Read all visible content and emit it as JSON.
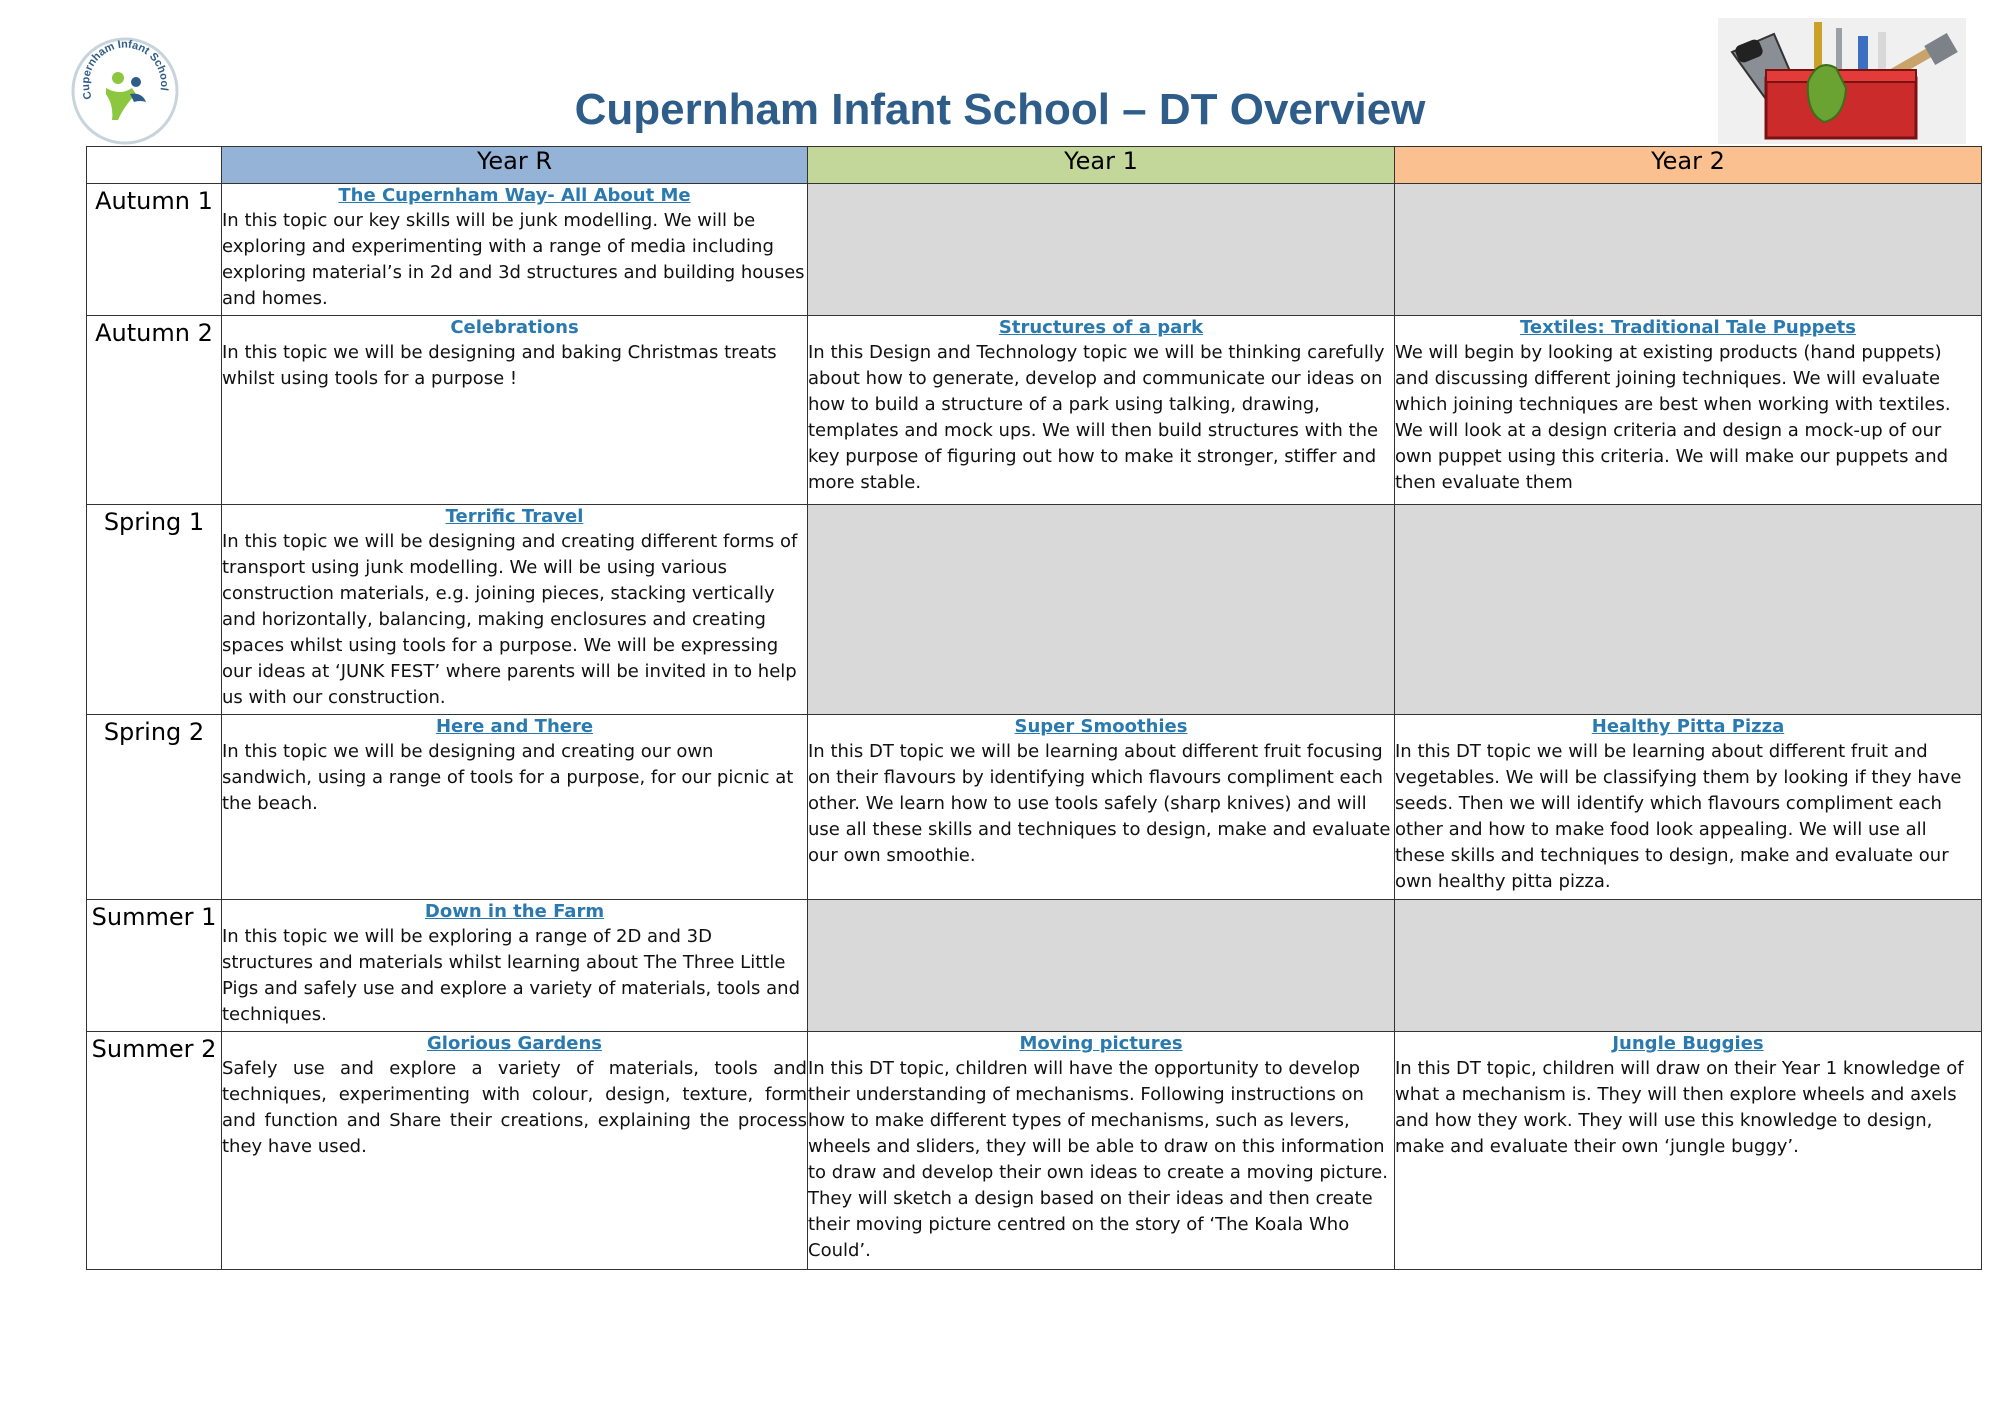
{
  "header": {
    "title": "Cupernham Infant School – DT Overview",
    "logo_text": "Cupernham Infant School"
  },
  "columns": [
    "Year R",
    "Year 1",
    "Year 2"
  ],
  "colors": {
    "year_r": "#95b3d7",
    "year_1": "#c4d79b",
    "year_2": "#fac090",
    "empty": "#d9d9d9",
    "topic": "#2a7ab0",
    "title": "#2e5d8a"
  },
  "rows": [
    {
      "term": "Autumn 1",
      "year_r": {
        "topic": "The Cupernham Way- All About Me",
        "desc": "In this topic our key skills will be junk modelling. We will be exploring and experimenting with a range of media including exploring material’s in 2d and 3d structures and building houses and homes."
      }
    },
    {
      "term": "Autumn 2",
      "year_r": {
        "topic": "Celebrations",
        "desc": "In this topic we will be designing and baking Christmas treats whilst using tools for a purpose  !"
      },
      "year_1": {
        "topic": "Structures of a park",
        "desc": "In this Design and Technology topic we will be thinking carefully about how to generate, develop and communicate our ideas on how to build a structure of a park using talking, drawing, templates and mock ups. We will then build structures with the key purpose of figuring out how to make it stronger, stiffer and more stable."
      },
      "year_2": {
        "topic": "Textiles: Traditional Tale Puppets",
        "desc": "We will begin by looking at existing products (hand puppets) and discussing different joining techniques. We will evaluate which joining techniques are best when working with textiles. We will look at a design criteria and design a mock-up of our own puppet using this criteria. We will make our puppets and then evaluate them"
      }
    },
    {
      "term": "Spring 1",
      "year_r": {
        "topic": "Terrific Travel",
        "desc": "In this topic we will be designing and creating different forms of transport using junk modelling.  We will be using various construction materials, e.g. joining pieces, stacking vertically and horizontally, balancing, making enclosures and creating spaces whilst using tools for a purpose.  We will be expressing our ideas at ‘JUNK FEST’ where parents will be invited in to help us with our construction."
      }
    },
    {
      "term": "Spring 2",
      "year_r": {
        "topic": "Here and There",
        "desc": "In this topic we will be designing and creating our own sandwich, using a range of tools for a purpose, for our picnic at the beach."
      },
      "year_1": {
        "topic": "Super Smoothies",
        "desc": "In this DT topic we will be learning about different fruit focusing on their flavours by identifying which flavours compliment each other. We learn how to use tools safely (sharp knives) and will use all these skills and techniques to design, make and evaluate our own smoothie."
      },
      "year_2": {
        "topic": "Healthy Pitta Pizza",
        "desc": "In this DT topic we will be learning about different fruit and vegetables. We will be classifying them by looking if they have seeds. Then we will identify which flavours compliment each other and how to make food look appealing. We will use all these skills and techniques to design, make and evaluate our own healthy pitta pizza."
      }
    },
    {
      "term": "Summer 1",
      "year_r": {
        "topic": "Down in the Farm",
        "desc": "In this topic we will be exploring a range of 2D and 3D structures and materials whilst learning about The Three Little Pigs and safely use and explore a variety of materials, tools and techniques."
      }
    },
    {
      "term": "Summer 2",
      "year_r": {
        "topic": "Glorious Gardens",
        "desc": "Safely use and explore a variety of materials, tools and techniques, experimenting with colour, design, texture, form and function and Share their creations, explaining the process they have used."
      },
      "year_1": {
        "topic": "Moving pictures",
        "desc": "In this DT topic, children will have the opportunity to develop their understanding of mechanisms. Following instructions on how to make different types of mechanisms, such as levers, wheels and sliders, they will be able to draw on this information to draw and develop their own ideas to create a moving picture. They will sketch a design based on their ideas and then create their moving picture centred on the story of ‘The Koala Who Could’."
      },
      "year_2": {
        "topic": "Jungle Buggies",
        "desc": "In this DT topic, children will draw on their Year 1 knowledge of what a mechanism is. They will then explore wheels and axels and how they work. They will use this knowledge to design, make and evaluate their own ‘jungle buggy’."
      }
    }
  ]
}
